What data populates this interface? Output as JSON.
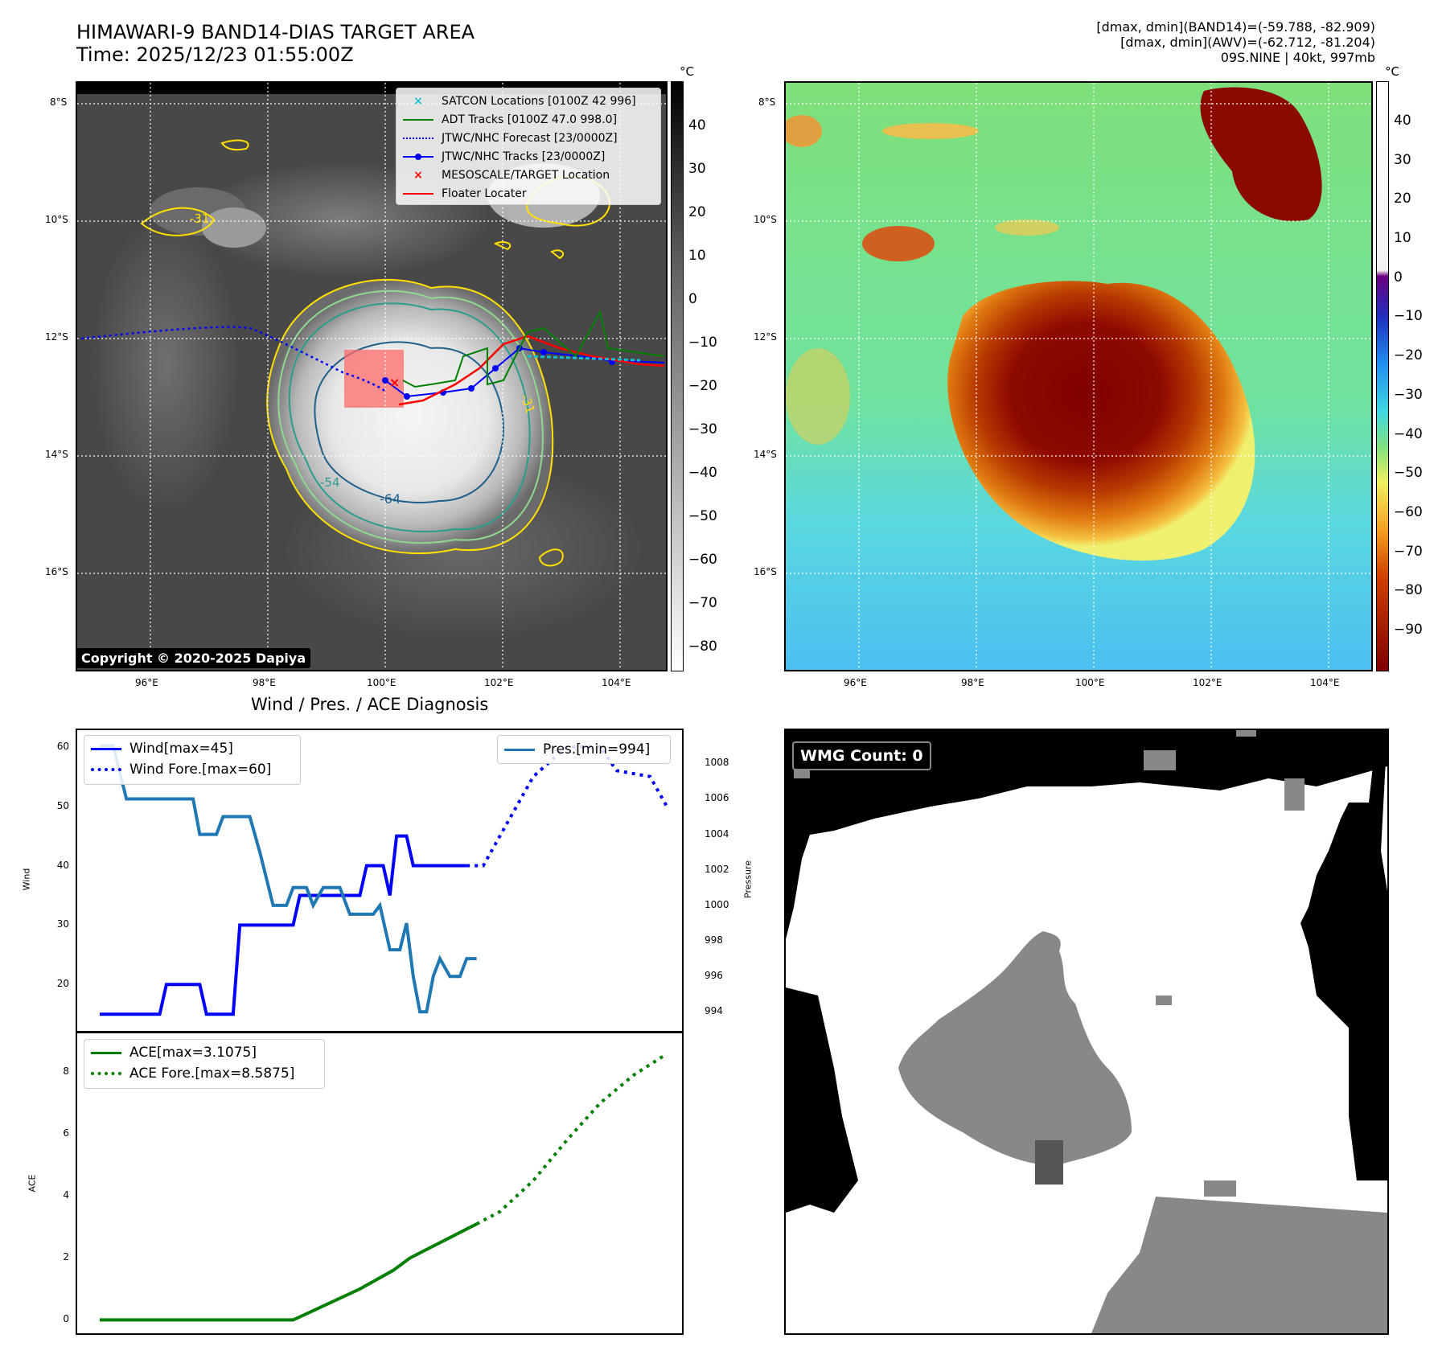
{
  "header": {
    "title_line1": "HIMAWARI-9 BAND14-DIAS TARGET AREA",
    "title_line2": "Time: 2025/12/23 01:55:00Z",
    "info_line1": "[dmax, dmin](BAND14)=(-59.788, -82.909)",
    "info_line2": "[dmax, dmin](AWV)=(-62.712, -81.204)",
    "info_line3": "09S.NINE | 40kt, 997mb"
  },
  "ir_panel": {
    "lat_labels": [
      "8°S",
      "10°S",
      "12°S",
      "14°S",
      "16°S"
    ],
    "lon_labels": [
      "96°E",
      "98°E",
      "100°E",
      "102°E",
      "104°E"
    ],
    "contour_labels": [
      "-31",
      "-31",
      "-54",
      "-64"
    ],
    "colorbar_unit": "°C",
    "colorbar_ticks": [
      "40",
      "30",
      "20",
      "10",
      "0",
      "−10",
      "−20",
      "−30",
      "−40",
      "−50",
      "−60",
      "−70",
      "−80"
    ],
    "copyright": "Copyright © 2020-2025 Dapiya",
    "legend": [
      {
        "label": "SATCON Locations [0100Z 42 996]",
        "color": "#17becf",
        "marker": "x"
      },
      {
        "label": "ADT Tracks [0100Z 47.0 998.0]",
        "color": "#008000",
        "marker": "line"
      },
      {
        "label": "JTWC/NHC Forecast [23/0000Z]",
        "color": "#0000ff",
        "marker": "dotted"
      },
      {
        "label": "JTWC/NHC Tracks [23/0000Z]",
        "color": "#0000ff",
        "marker": "line-dot"
      },
      {
        "label": "MESOSCALE/TARGET Location",
        "color": "#ff0000",
        "marker": "x"
      },
      {
        "label": "Floater Locater",
        "color": "#ff0000",
        "marker": "line"
      }
    ]
  },
  "color_panel": {
    "lat_labels": [
      "8°S",
      "10°S",
      "12°S",
      "14°S",
      "16°S"
    ],
    "lon_labels": [
      "96°E",
      "98°E",
      "100°E",
      "102°E",
      "104°E"
    ],
    "colorbar_unit": "°C",
    "colorbar_ticks": [
      "40",
      "30",
      "20",
      "10",
      "0",
      "−10",
      "−20",
      "−30",
      "−40",
      "−50",
      "−60",
      "−70",
      "−80",
      "−90"
    ]
  },
  "diag_title": "Wind / Pres. / ACE Diagnosis",
  "wmg_label": "WMG Count: 0",
  "chart_data": [
    {
      "type": "line",
      "title": "Wind / Pres. / ACE Diagnosis",
      "ylabel": "Wind",
      "ylim": [
        13,
        62
      ],
      "y2label": "Pressure",
      "y2lim": [
        993.2,
        1009.6
      ],
      "yticks": [
        "20",
        "30",
        "40",
        "50",
        "60"
      ],
      "y2ticks": [
        "994",
        "996",
        "998",
        "1000",
        "1002",
        "1004",
        "1006",
        "1008"
      ],
      "x": [
        0,
        1,
        2,
        3,
        4,
        5,
        6,
        7,
        8,
        9,
        10,
        11,
        12,
        13,
        14,
        15,
        16,
        17,
        18,
        19,
        20,
        21,
        22,
        23,
        24,
        25,
        26,
        27,
        28,
        29,
        30,
        31,
        32,
        33,
        34,
        35,
        36,
        37,
        38,
        39,
        40,
        41,
        42,
        43,
        44,
        45,
        46,
        47,
        48,
        49,
        50,
        51,
        52,
        53,
        54,
        55,
        56,
        57,
        58,
        59,
        60,
        61,
        62,
        63,
        64,
        65,
        66,
        67,
        68,
        69,
        70,
        71,
        72,
        73,
        74,
        75,
        76,
        77,
        78,
        79,
        80,
        81,
        82,
        83,
        84,
        85,
        86,
        87,
        88,
        89,
        90,
        91,
        92,
        93,
        94,
        95,
        96,
        97,
        98,
        99,
        100,
        101,
        102,
        103,
        104,
        105,
        106,
        107,
        108,
        109,
        110,
        111,
        112,
        113,
        114,
        115,
        116,
        117,
        118,
        119,
        120,
        121,
        122,
        123,
        124,
        125,
        126,
        127,
        128,
        129,
        130,
        131,
        132,
        133,
        134,
        135,
        136,
        137,
        138,
        139,
        140,
        141,
        142,
        143,
        144,
        145,
        146,
        147,
        148,
        149,
        150,
        151,
        152,
        153,
        154,
        155,
        156,
        157,
        158,
        159,
        160,
        161,
        162,
        163,
        164,
        165,
        166,
        167,
        168,
        169,
        170
      ],
      "series": [
        {
          "name": "Wind[max=45]",
          "color": "#0000ff",
          "style": "solid",
          "points": [
            [
              0,
              15
            ],
            [
              18,
              15
            ],
            [
              20,
              20
            ],
            [
              30,
              20
            ],
            [
              32,
              15
            ],
            [
              40,
              15
            ],
            [
              42,
              30
            ],
            [
              58,
              30
            ],
            [
              60,
              35
            ],
            [
              78,
              35
            ],
            [
              80,
              40
            ],
            [
              85,
              40
            ],
            [
              87,
              35
            ],
            [
              89,
              45
            ],
            [
              92,
              45
            ],
            [
              94,
              40
            ],
            [
              110,
              40
            ]
          ]
        },
        {
          "name": "Wind Fore.[max=60]",
          "color": "#0000ff",
          "style": "dotted",
          "points": [
            [
              110,
              40
            ],
            [
              115,
              40
            ],
            [
              130,
              55
            ],
            [
              140,
              60
            ],
            [
              150,
              60
            ],
            [
              155,
              56
            ],
            [
              165,
              55
            ],
            [
              170,
              50
            ]
          ]
        },
        {
          "name": "Pres.[min=994]",
          "color": "#1f77b4",
          "style": "solid",
          "axis": "y2",
          "points": [
            [
              0,
              1009
            ],
            [
              4,
              1009
            ],
            [
              8,
              1006
            ],
            [
              28,
              1006
            ],
            [
              30,
              1004
            ],
            [
              35,
              1004
            ],
            [
              37,
              1005
            ],
            [
              45,
              1005
            ],
            [
              48,
              1003
            ],
            [
              52,
              1000
            ],
            [
              56,
              1000
            ],
            [
              58,
              1001
            ],
            [
              62,
              1001
            ],
            [
              64,
              1000
            ],
            [
              67,
              1001
            ],
            [
              72,
              1001
            ],
            [
              75,
              999.5
            ],
            [
              82,
              999.5
            ],
            [
              84,
              1000
            ],
            [
              87,
              997.5
            ],
            [
              90,
              997.5
            ],
            [
              92,
              999
            ],
            [
              94,
              996
            ],
            [
              96,
              994
            ],
            [
              98,
              994
            ],
            [
              100,
              996
            ],
            [
              102,
              997
            ],
            [
              105,
              996
            ],
            [
              108,
              996
            ],
            [
              110,
              997
            ],
            [
              113,
              997
            ]
          ]
        }
      ]
    },
    {
      "type": "line",
      "ylabel": "ACE",
      "ylim": [
        -0.3,
        9.1
      ],
      "yticks": [
        "0",
        "2",
        "4",
        "6",
        "8"
      ],
      "series": [
        {
          "name": "ACE[max=3.1075]",
          "color": "#008000",
          "style": "solid",
          "points": [
            [
              0,
              0
            ],
            [
              58,
              0
            ],
            [
              68,
              0.5
            ],
            [
              78,
              1.0
            ],
            [
              88,
              1.6
            ],
            [
              93,
              2.0
            ],
            [
              113,
              3.1
            ]
          ]
        },
        {
          "name": "ACE Fore.[max=8.5875]",
          "color": "#008000",
          "style": "dotted",
          "points": [
            [
              113,
              3.1
            ],
            [
              120,
              3.5
            ],
            [
              130,
              4.5
            ],
            [
              140,
              5.8
            ],
            [
              150,
              7.0
            ],
            [
              160,
              7.9
            ],
            [
              170,
              8.59
            ]
          ]
        }
      ]
    }
  ]
}
